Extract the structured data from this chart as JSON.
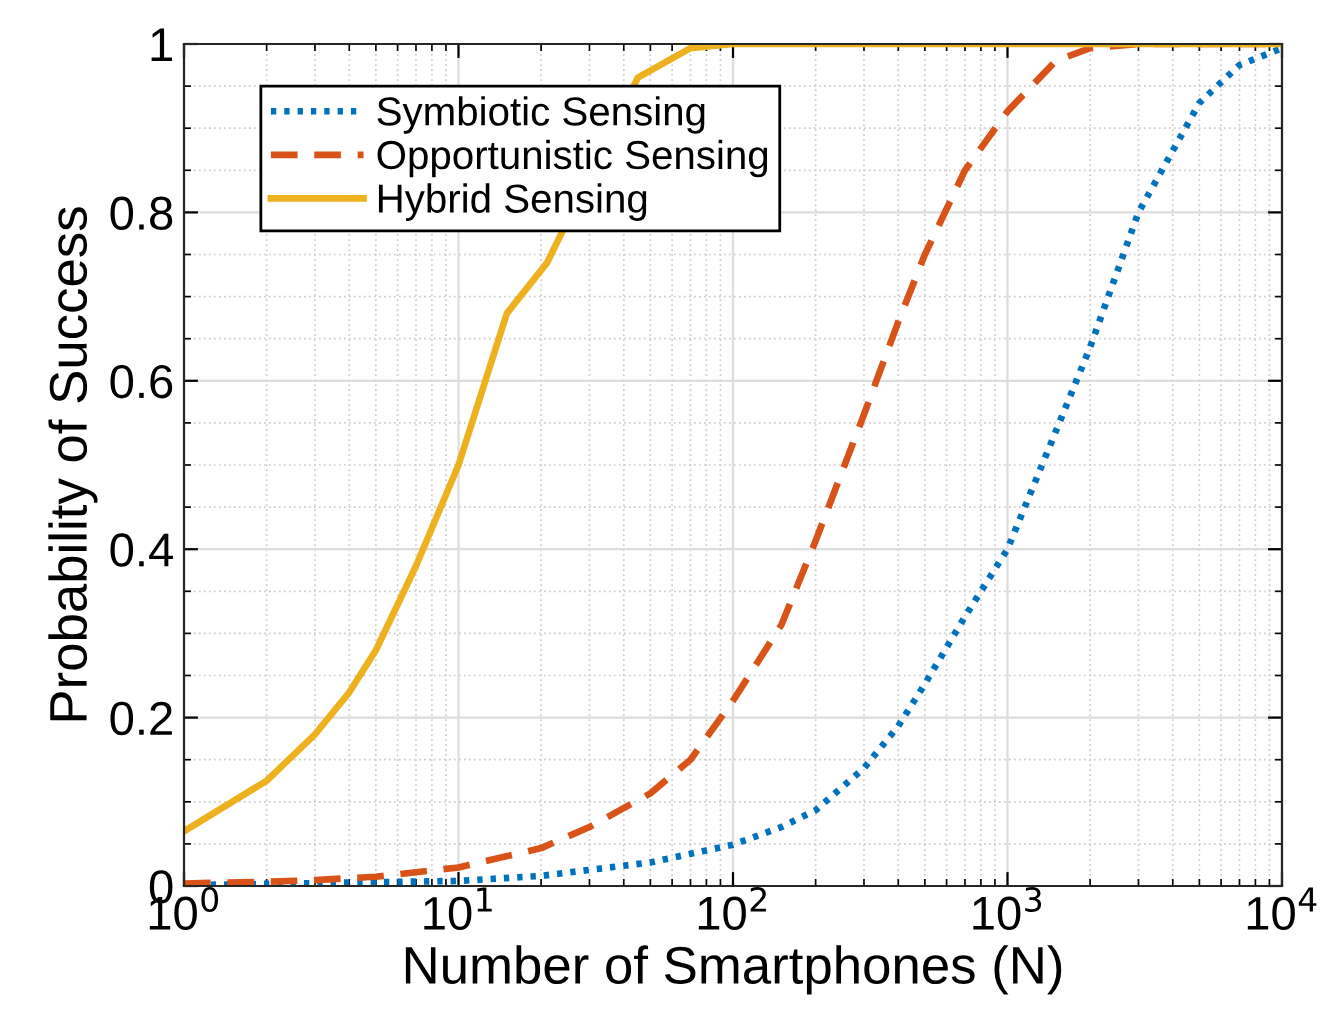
{
  "chart_data": {
    "type": "line",
    "xlabel": "Number of Smartphones (N)",
    "ylabel": "Probability of Success",
    "log": "x",
    "xlim": [
      1,
      10000
    ],
    "ylim": [
      0,
      1
    ],
    "xticks": [
      {
        "value": 1,
        "label": "10$^{0}$"
      },
      {
        "value": 10,
        "label": "10$^{1}$"
      },
      {
        "value": 100,
        "label": "10$^{2}$"
      },
      {
        "value": 1000,
        "label": "10$^{3}$"
      },
      {
        "value": 10000,
        "label": "10$^{4}$"
      }
    ],
    "yticks": [
      0,
      0.2,
      0.4,
      0.6,
      0.8,
      1
    ],
    "grid": true,
    "legend": "top left",
    "series": [
      {
        "name": "Symbiotic Sensing",
        "color": "#0072bd",
        "line_style": "dotted",
        "x": [
          1,
          10,
          20,
          50,
          100,
          150,
          200,
          300,
          400,
          500,
          700,
          1000,
          1500,
          2000,
          3000,
          5000,
          7000,
          10000
        ],
        "values": [
          0.001,
          0.006,
          0.012,
          0.028,
          0.049,
          0.07,
          0.09,
          0.14,
          0.19,
          0.24,
          0.32,
          0.4,
          0.54,
          0.64,
          0.8,
          0.93,
          0.975,
          0.995
        ]
      },
      {
        "name": "Opportunistic Sensing",
        "color": "#d95319",
        "line_style": "dashed",
        "x": [
          1,
          2,
          3,
          5,
          10,
          20,
          30,
          50,
          70,
          100,
          150,
          200,
          300,
          400,
          500,
          700,
          1000,
          1500,
          2000,
          3000,
          10000
        ],
        "values": [
          0.003,
          0.005,
          0.007,
          0.011,
          0.022,
          0.045,
          0.07,
          0.11,
          0.15,
          0.22,
          0.31,
          0.41,
          0.56,
          0.67,
          0.75,
          0.85,
          0.92,
          0.98,
          0.995,
          1,
          1
        ]
      },
      {
        "name": "Hybrid Sensing",
        "color": "#edb120",
        "line_style": "solid",
        "x": [
          1,
          2,
          3,
          4,
          5,
          7,
          10,
          15,
          21,
          45,
          70,
          100,
          10000
        ],
        "values": [
          0.065,
          0.125,
          0.18,
          0.23,
          0.28,
          0.38,
          0.5,
          0.68,
          0.74,
          0.96,
          0.995,
          1,
          1
        ]
      }
    ]
  }
}
